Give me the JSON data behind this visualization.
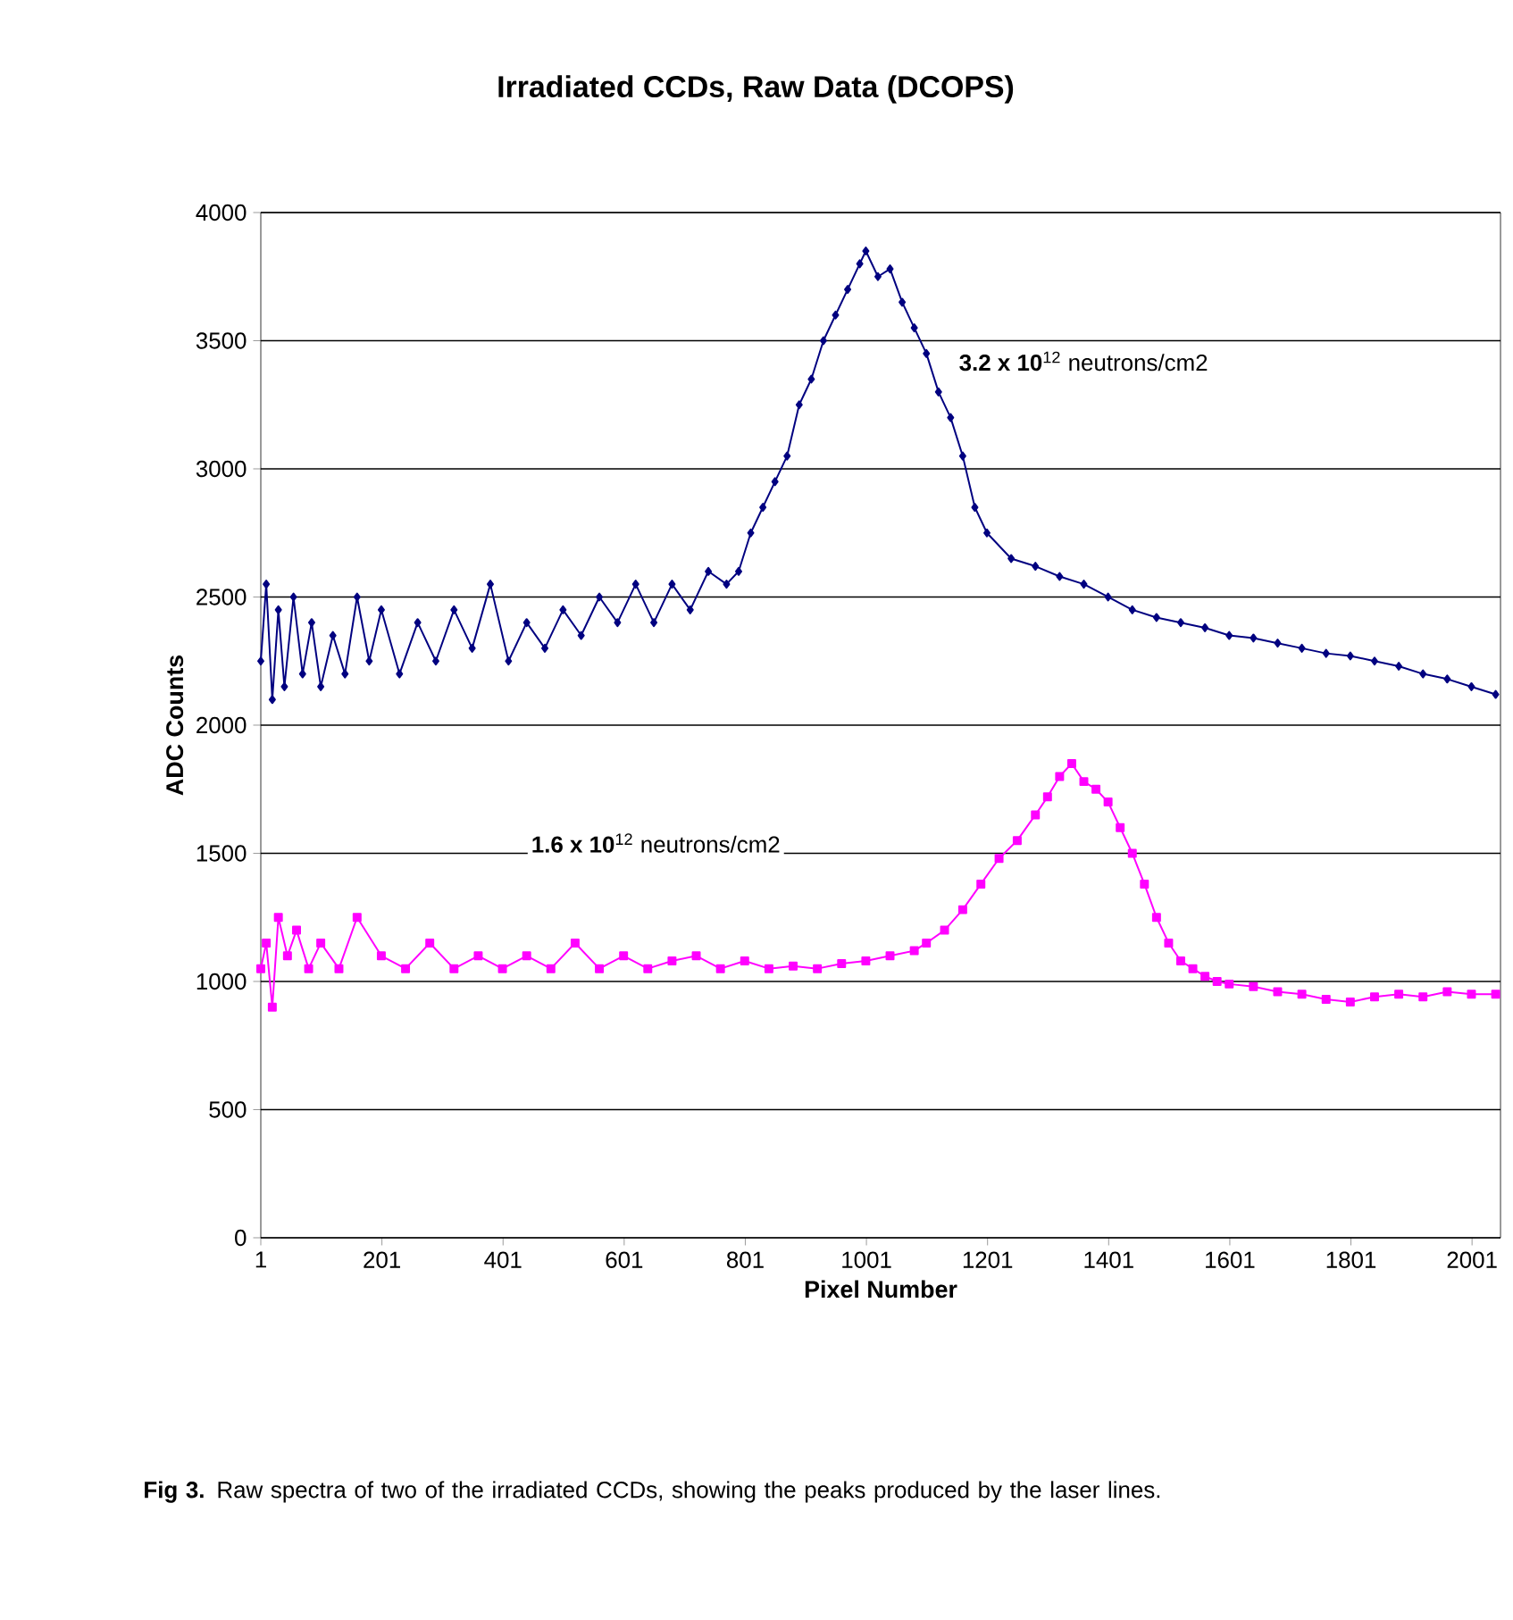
{
  "chart_data": {
    "type": "line",
    "title": "Irradiated CCDs, Raw Data (DCOPS)",
    "xlabel": "Pixel Number",
    "ylabel": "ADC Counts",
    "xlim": [
      1,
      2048
    ],
    "xticks": [
      1,
      201,
      401,
      601,
      801,
      1001,
      1201,
      1401,
      1601,
      1801,
      2001
    ],
    "ylim": [
      0,
      4000
    ],
    "yticks": [
      0,
      500,
      1000,
      1500,
      2000,
      2500,
      3000,
      3500,
      4000
    ],
    "grid": "y",
    "line_style": "solid",
    "series": [
      {
        "color": "#000080",
        "marker": "diamond",
        "x": [
          1,
          10,
          20,
          30,
          40,
          55,
          70,
          85,
          100,
          120,
          140,
          160,
          180,
          200,
          230,
          260,
          290,
          320,
          350,
          380,
          410,
          440,
          470,
          500,
          530,
          560,
          590,
          620,
          650,
          680,
          710,
          740,
          770,
          790,
          810,
          830,
          850,
          870,
          890,
          910,
          930,
          950,
          970,
          990,
          1000,
          1020,
          1040,
          1060,
          1080,
          1100,
          1120,
          1140,
          1160,
          1180,
          1200,
          1240,
          1280,
          1320,
          1360,
          1400,
          1440,
          1480,
          1520,
          1560,
          1600,
          1640,
          1680,
          1720,
          1760,
          1800,
          1840,
          1880,
          1920,
          1960,
          2000,
          2040
        ],
        "values": [
          2250,
          2550,
          2100,
          2450,
          2150,
          2500,
          2200,
          2400,
          2150,
          2350,
          2200,
          2500,
          2250,
          2450,
          2200,
          2400,
          2250,
          2450,
          2300,
          2550,
          2250,
          2400,
          2300,
          2450,
          2350,
          2500,
          2400,
          2550,
          2400,
          2550,
          2450,
          2600,
          2550,
          2600,
          2750,
          2850,
          2950,
          3050,
          3250,
          3350,
          3500,
          3600,
          3700,
          3800,
          3850,
          3750,
          3780,
          3650,
          3550,
          3450,
          3300,
          3200,
          3050,
          2850,
          2750,
          2650,
          2620,
          2580,
          2550,
          2500,
          2450,
          2420,
          2400,
          2380,
          2350,
          2340,
          2320,
          2300,
          2280,
          2270,
          2250,
          2230,
          2200,
          2180,
          2150,
          2120
        ]
      },
      {
        "color": "#ff00ff",
        "marker": "square",
        "x": [
          1,
          10,
          20,
          30,
          45,
          60,
          80,
          100,
          130,
          160,
          200,
          240,
          280,
          320,
          360,
          400,
          440,
          480,
          520,
          560,
          600,
          640,
          680,
          720,
          760,
          800,
          840,
          880,
          920,
          960,
          1000,
          1040,
          1080,
          1100,
          1130,
          1160,
          1190,
          1220,
          1250,
          1280,
          1300,
          1320,
          1340,
          1360,
          1380,
          1400,
          1420,
          1440,
          1460,
          1480,
          1500,
          1520,
          1540,
          1560,
          1580,
          1600,
          1640,
          1680,
          1720,
          1760,
          1800,
          1840,
          1880,
          1920,
          1960,
          2000,
          2040
        ],
        "values": [
          1050,
          1150,
          900,
          1250,
          1100,
          1200,
          1050,
          1150,
          1050,
          1250,
          1100,
          1050,
          1150,
          1050,
          1100,
          1050,
          1100,
          1050,
          1150,
          1050,
          1100,
          1050,
          1080,
          1100,
          1050,
          1080,
          1050,
          1060,
          1050,
          1070,
          1080,
          1100,
          1120,
          1150,
          1200,
          1280,
          1380,
          1480,
          1550,
          1650,
          1720,
          1800,
          1850,
          1780,
          1750,
          1700,
          1600,
          1500,
          1380,
          1250,
          1150,
          1080,
          1050,
          1020,
          1000,
          990,
          980,
          960,
          950,
          930,
          920,
          940,
          950,
          940,
          960,
          950,
          950
        ]
      }
    ],
    "annotations": [
      "**3.2  x 10**$^{12}$ neutrons/cm2",
      "**1.6  x 10**$^{12}$ neutrons/cm2",
      "**Fig 3.** Raw spectra of two of the irradiated CCDs, showing the peaks produced by the laser lines."
    ]
  }
}
